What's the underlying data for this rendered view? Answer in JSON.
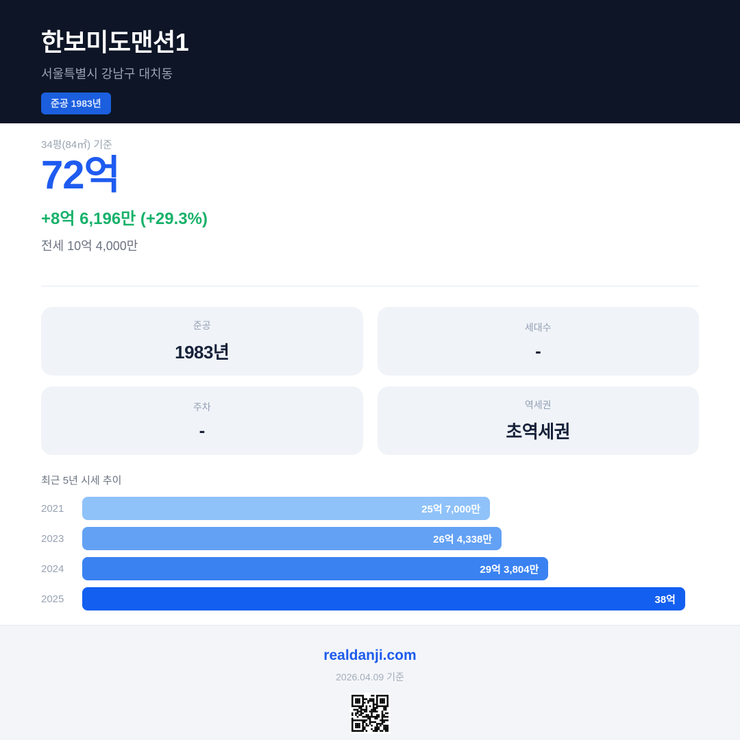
{
  "header": {
    "title": "한보미도맨션1",
    "address": "서울특별시 강남구 대치동",
    "badge": "준공 1983년"
  },
  "price": {
    "basis": "34평(84㎡) 기준",
    "amount": "72억",
    "change": "+8억 6,196만 (+29.3%)",
    "jeonse": "전세 10억 4,000만"
  },
  "info_cards": [
    {
      "label": "준공",
      "value": "1983년"
    },
    {
      "label": "세대수",
      "value": "-"
    },
    {
      "label": "주차",
      "value": "-"
    },
    {
      "label": "역세권",
      "value": "초역세권"
    }
  ],
  "chart_data": {
    "type": "bar",
    "orientation": "horizontal",
    "title": "최근 5년 시세 추이",
    "categories": [
      "2021",
      "2023",
      "2024",
      "2025"
    ],
    "values": [
      25.7,
      26.4338,
      29.3804,
      38
    ],
    "value_labels": [
      "25억 7,000만",
      "26억 4,338만",
      "29억 3,804만",
      "38억"
    ],
    "unit": "억",
    "xlim": [
      0,
      38
    ],
    "bar_colors": [
      "#8fc2f9",
      "#63a1f4",
      "#3a82f1",
      "#135ff0"
    ],
    "grid": false,
    "legend": false
  },
  "footer": {
    "site": "realdanji.com",
    "date": "2026.04.09 기준"
  },
  "colors": {
    "header_bg": "#0d1526",
    "accent_blue": "#1e5bf0",
    "badge_blue": "#1b5ede",
    "positive_green": "#17b26a",
    "card_bg": "#f0f3f8",
    "footer_bg": "#f3f5f9"
  }
}
